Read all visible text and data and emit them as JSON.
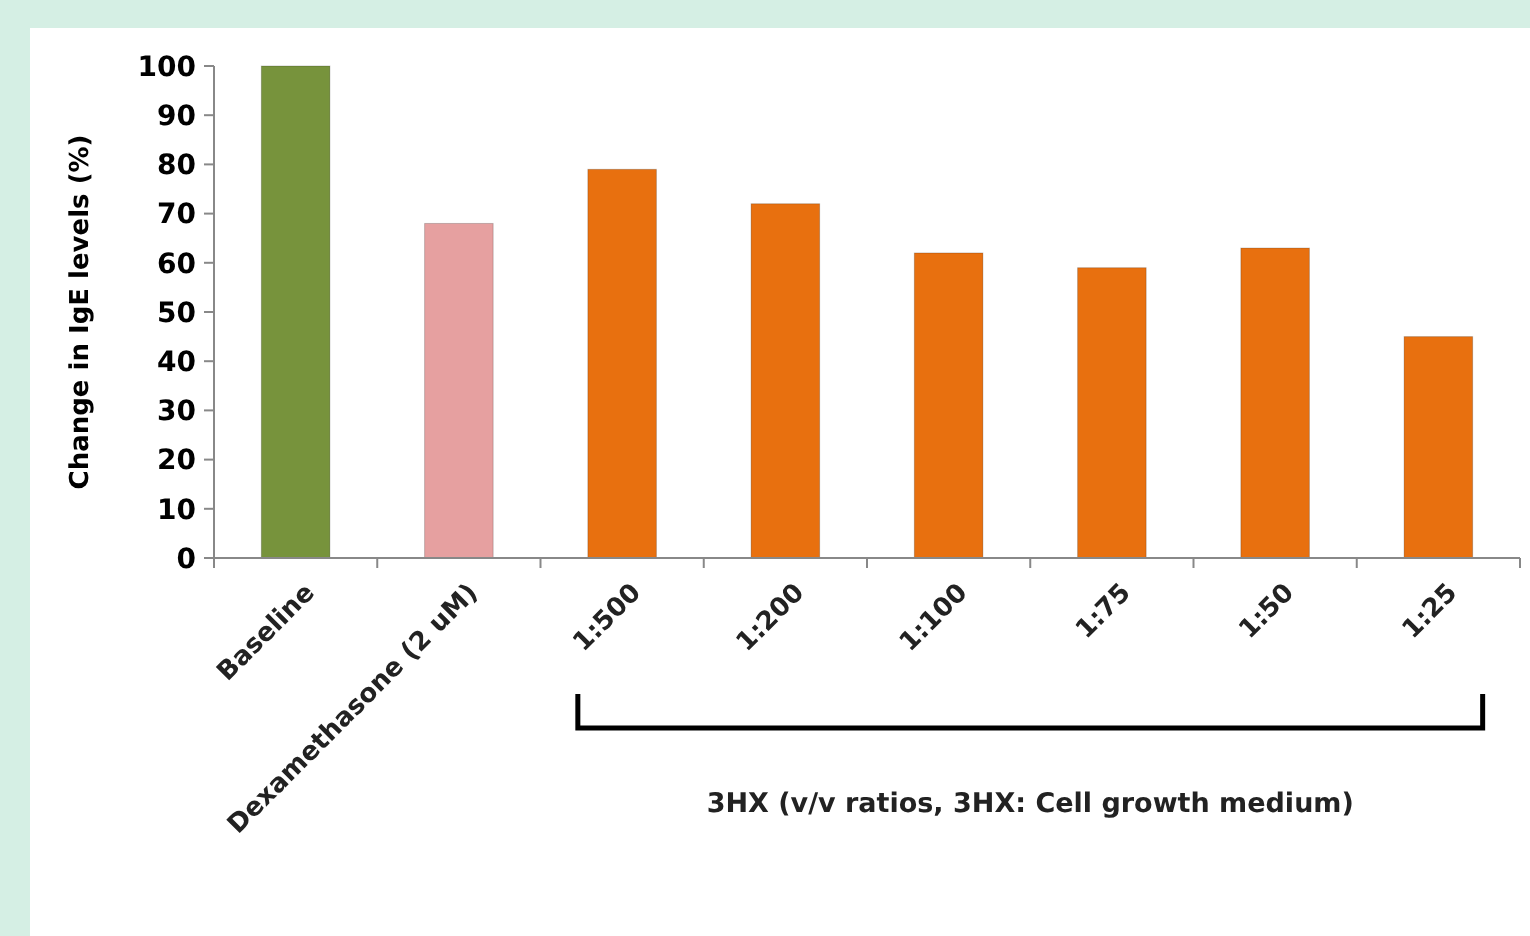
{
  "chart_data": {
    "type": "bar",
    "ylabel": "Change in IgE levels (%)",
    "categories": [
      "Baseline",
      "Dexamethasone (2 uM)",
      "1:500",
      "1:200",
      "1:100",
      "1:75",
      "1:50",
      "1:25"
    ],
    "values": [
      100,
      68,
      79,
      72,
      62,
      59,
      63,
      45
    ],
    "colors": [
      "#77933c",
      "#e6a0a0",
      "#e8700f",
      "#e8700f",
      "#e8700f",
      "#e8700f",
      "#e8700f",
      "#e8700f"
    ],
    "ylim": [
      0,
      100
    ],
    "yticks": [
      0,
      10,
      20,
      30,
      40,
      50,
      60,
      70,
      80,
      90,
      100
    ],
    "grid": false,
    "annotations": [
      "3HX (v/v ratios, 3HX: Cell growth medium)"
    ]
  }
}
